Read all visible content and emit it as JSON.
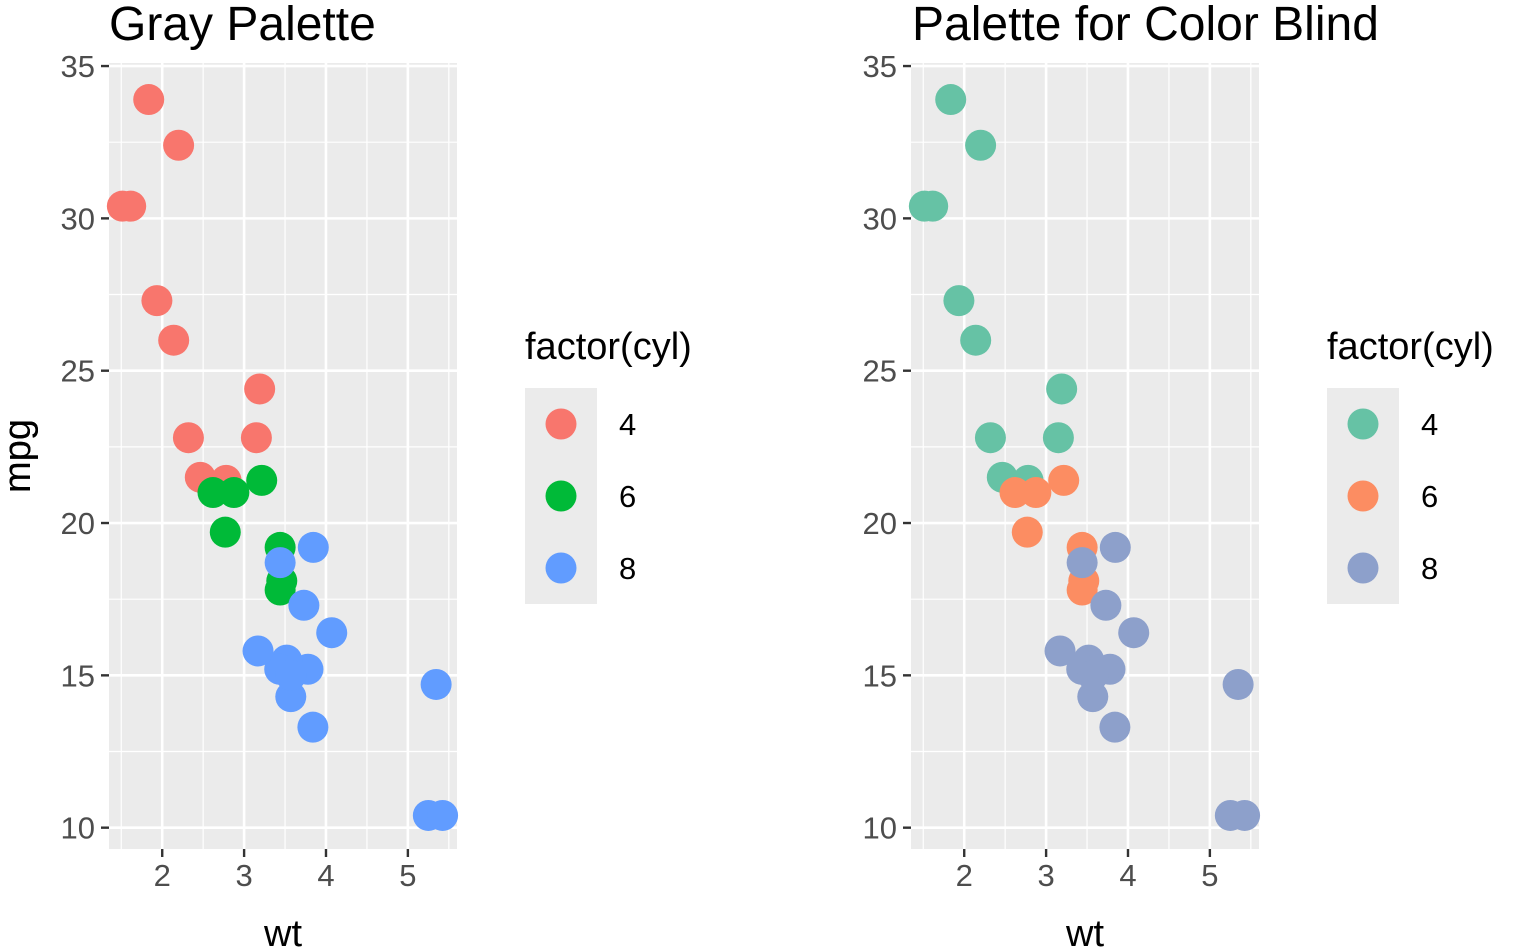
{
  "chart_data": [
    {
      "type": "scatter",
      "title": "Gray Palette",
      "xlabel": "wt",
      "ylabel": "mpg",
      "xlim": [
        1.35,
        5.6
      ],
      "ylim": [
        9.3,
        35.1
      ],
      "x_ticks": [
        2,
        3,
        4,
        5
      ],
      "y_ticks": [
        10,
        15,
        20,
        25,
        30,
        35
      ],
      "grid": true,
      "legend": {
        "title": "factor(cyl)",
        "position": "right"
      },
      "series": [
        {
          "name": "4",
          "color": "#F8766D",
          "x": [
            2.32,
            3.19,
            3.15,
            2.2,
            1.615,
            1.835,
            2.465,
            1.935,
            2.14,
            1.513,
            2.78
          ],
          "y": [
            22.8,
            24.4,
            22.8,
            32.4,
            30.4,
            33.9,
            21.5,
            27.3,
            26.0,
            30.4,
            21.4
          ]
        },
        {
          "name": "6",
          "color": "#00BA38",
          "x": [
            2.62,
            2.875,
            3.215,
            3.46,
            3.44,
            3.44,
            2.77
          ],
          "y": [
            21.0,
            21.0,
            21.4,
            18.1,
            19.2,
            17.8,
            19.7
          ]
        },
        {
          "name": "8",
          "color": "#619CFF",
          "x": [
            3.44,
            3.57,
            4.07,
            3.73,
            3.78,
            5.25,
            5.424,
            5.345,
            3.52,
            3.435,
            3.84,
            3.845,
            3.17,
            3.57
          ],
          "y": [
            18.7,
            14.3,
            16.4,
            17.3,
            15.2,
            10.4,
            10.4,
            14.7,
            15.5,
            15.2,
            13.3,
            19.2,
            15.8,
            15.0
          ]
        }
      ]
    },
    {
      "type": "scatter",
      "title": "Palette for Color Blind",
      "xlabel": "wt",
      "ylabel": "mpg",
      "xlim": [
        1.35,
        5.6
      ],
      "ylim": [
        9.3,
        35.1
      ],
      "x_ticks": [
        2,
        3,
        4,
        5
      ],
      "y_ticks": [
        10,
        15,
        20,
        25,
        30,
        35
      ],
      "grid": true,
      "legend": {
        "title": "factor(cyl)",
        "position": "right"
      },
      "series": [
        {
          "name": "4",
          "color": "#66C2A5",
          "x": [
            2.32,
            3.19,
            3.15,
            2.2,
            1.615,
            1.835,
            2.465,
            1.935,
            2.14,
            1.513,
            2.78
          ],
          "y": [
            22.8,
            24.4,
            22.8,
            32.4,
            30.4,
            33.9,
            21.5,
            27.3,
            26.0,
            30.4,
            21.4
          ]
        },
        {
          "name": "6",
          "color": "#FC8D62",
          "x": [
            2.62,
            2.875,
            3.215,
            3.46,
            3.44,
            3.44,
            2.77
          ],
          "y": [
            21.0,
            21.0,
            21.4,
            18.1,
            19.2,
            17.8,
            19.7
          ]
        },
        {
          "name": "8",
          "color": "#8DA0CB",
          "x": [
            3.44,
            3.57,
            4.07,
            3.73,
            3.78,
            5.25,
            5.424,
            5.345,
            3.52,
            3.435,
            3.84,
            3.845,
            3.17,
            3.57
          ],
          "y": [
            18.7,
            14.3,
            16.4,
            17.3,
            15.2,
            10.4,
            10.4,
            14.7,
            15.5,
            15.2,
            13.3,
            19.2,
            15.8,
            15.0
          ]
        }
      ]
    }
  ]
}
